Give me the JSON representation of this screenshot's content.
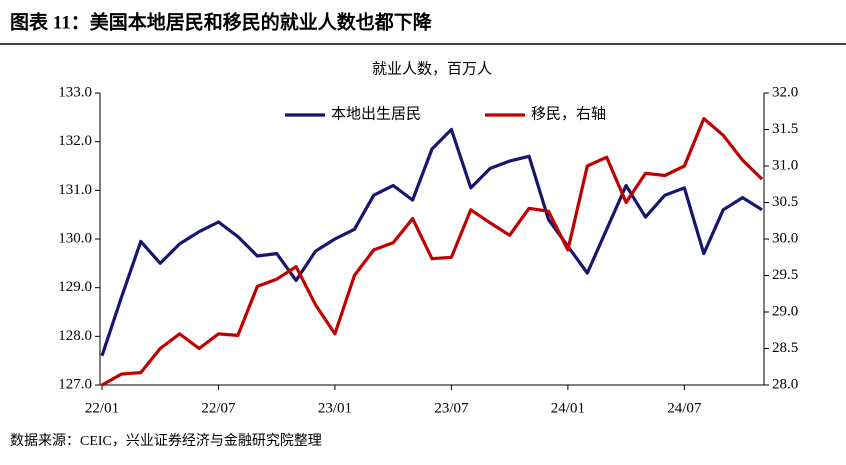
{
  "title": "图表 11：美国本地居民和移民的就业人数也都下降",
  "source": "数据来源：CEIC，兴业证券经济与金融研究院整理",
  "chart_data": {
    "type": "line",
    "title": "就业人数，百万人",
    "categories": [
      "22/01",
      null,
      null,
      null,
      null,
      null,
      "22/07",
      null,
      null,
      null,
      null,
      null,
      "23/01",
      null,
      null,
      null,
      null,
      null,
      "23/07",
      null,
      null,
      null,
      null,
      null,
      "24/01",
      null,
      null,
      null,
      null,
      null,
      "24/07",
      null,
      null,
      null,
      null
    ],
    "series": [
      {
        "name": "本地出生居民",
        "color": "#16166e",
        "axis": "y",
        "values": [
          127.6,
          128.8,
          129.95,
          129.5,
          129.9,
          130.15,
          130.35,
          130.05,
          129.65,
          129.7,
          129.15,
          129.75,
          130.0,
          130.2,
          130.9,
          131.1,
          130.8,
          131.85,
          132.25,
          131.05,
          131.45,
          131.6,
          131.7,
          130.4,
          129.85,
          129.3,
          130.2,
          131.1,
          130.45,
          130.9,
          131.05,
          129.7,
          130.6,
          130.85,
          130.6
        ]
      },
      {
        "name": "移民，右轴",
        "color": "#c00000",
        "axis": "y2",
        "values": [
          28.0,
          28.15,
          28.17,
          28.5,
          28.7,
          28.5,
          28.7,
          28.68,
          29.35,
          29.45,
          29.62,
          29.1,
          28.7,
          29.5,
          29.85,
          29.95,
          30.28,
          29.73,
          29.75,
          30.4,
          30.22,
          30.05,
          30.42,
          30.38,
          29.85,
          31.0,
          31.12,
          30.5,
          30.9,
          30.87,
          31.0,
          31.65,
          31.42,
          31.08,
          30.82
        ]
      }
    ],
    "ylim": [
      127,
      133
    ],
    "yticks": [
      {
        "value": 127,
        "label": "127.0"
      },
      {
        "value": 128,
        "label": "128.0"
      },
      {
        "value": 129,
        "label": "129.0"
      },
      {
        "value": 130,
        "label": "130.0"
      },
      {
        "value": 131,
        "label": "131.0"
      },
      {
        "value": 132,
        "label": "132.0"
      },
      {
        "value": 133,
        "label": "133.0"
      }
    ],
    "y2lim": [
      28,
      32
    ],
    "y2ticks": [
      {
        "value": 28,
        "label": "28.0"
      },
      28.5,
      {
        "value": 29,
        "label": "29.0"
      },
      29.5,
      {
        "value": 30,
        "label": "30.0"
      },
      30.5,
      {
        "value": 31,
        "label": "31.0"
      },
      31.5,
      {
        "value": 32,
        "label": "32.0"
      }
    ]
  }
}
